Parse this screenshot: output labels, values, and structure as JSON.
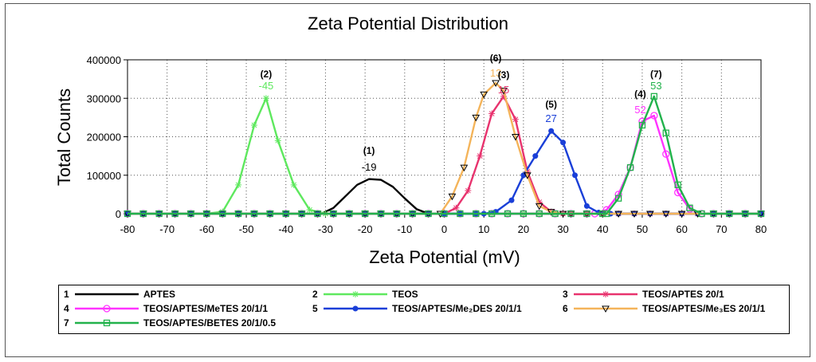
{
  "chart_data": {
    "type": "line",
    "title": "Zeta Potential Distribution",
    "xlabel": "Zeta Potential (mV)",
    "ylabel": "Total Counts",
    "xlim": [
      -80,
      80
    ],
    "ylim": [
      0,
      400000
    ],
    "x_ticks": [
      -80,
      -70,
      -60,
      -50,
      -40,
      -30,
      -20,
      -10,
      0,
      10,
      20,
      30,
      40,
      50,
      60,
      70,
      80
    ],
    "y_ticks": [
      0,
      100000,
      200000,
      300000,
      400000
    ],
    "x_tick_labels": [
      "-80",
      "-70",
      "-60",
      "-50",
      "-40",
      "-30",
      "-20",
      "-10",
      "0",
      "10",
      "20",
      "30",
      "40",
      "50",
      "60",
      "70",
      "80"
    ],
    "y_tick_labels": [
      "0",
      "100000",
      "200000",
      "300000",
      "400000"
    ],
    "grid": true,
    "legend_position": "bottom",
    "series": [
      {
        "id": "1",
        "name": "APTES",
        "color": "#000000",
        "marker": "none",
        "x": [
          -31,
          -28,
          -25,
          -22,
          -19,
          -16,
          -13,
          -10,
          -7,
          -4
        ],
        "y": [
          0,
          15000,
          45000,
          75000,
          90000,
          88000,
          70000,
          40000,
          12000,
          0
        ]
      },
      {
        "id": "2",
        "name": "TEOS",
        "color": "#5ee85e",
        "marker": "star",
        "x": [
          -60,
          -56,
          -52,
          -48,
          -45,
          -42,
          -38,
          -34,
          -30
        ],
        "y": [
          0,
          5000,
          75000,
          230000,
          300000,
          190000,
          75000,
          10000,
          0
        ]
      },
      {
        "id": "3",
        "name": "TEOS/APTES 20/1",
        "color": "#e8336e",
        "marker": "star",
        "x": [
          0,
          3,
          6,
          9,
          12,
          15,
          18,
          21,
          24,
          27,
          30
        ],
        "y": [
          0,
          15000,
          60000,
          150000,
          260000,
          305000,
          245000,
          110000,
          30000,
          5000,
          0
        ]
      },
      {
        "id": "4",
        "name": "TEOS/APTES/MeTES 20/1/1",
        "color": "#ff33ff",
        "marker": "circle",
        "x": [
          38,
          41,
          44,
          47,
          50,
          53,
          56,
          59,
          62,
          65
        ],
        "y": [
          0,
          10000,
          50000,
          120000,
          240000,
          255000,
          155000,
          55000,
          12000,
          0
        ]
      },
      {
        "id": "5",
        "name": "TEOS/APTES/Me₂DES 20/1/1",
        "color": "#1a3fd8",
        "marker": "dot",
        "x": [
          10,
          13,
          17,
          20,
          23,
          27,
          30,
          33,
          36,
          39,
          42
        ],
        "y": [
          0,
          5000,
          35000,
          100000,
          150000,
          215000,
          185000,
          100000,
          20000,
          3000,
          0
        ]
      },
      {
        "id": "6",
        "name": "TEOS/APTES/Me₃ES 20/1/1",
        "color": "#f4b45a",
        "marker": "triangle-down",
        "x": [
          -1,
          2,
          5,
          8,
          10,
          13,
          15,
          18,
          21,
          24,
          27,
          30
        ],
        "y": [
          0,
          45000,
          120000,
          250000,
          310000,
          340000,
          320000,
          200000,
          100000,
          20000,
          5000,
          0
        ]
      },
      {
        "id": "7",
        "name": "TEOS/APTES/BETES 20/1/0.5",
        "color": "#22b24c",
        "marker": "square",
        "x": [
          41,
          44,
          47,
          50,
          53,
          56,
          59,
          62,
          65
        ],
        "y": [
          0,
          40000,
          120000,
          230000,
          305000,
          210000,
          75000,
          15000,
          0
        ]
      }
    ],
    "annotations": [
      {
        "id": "(2)",
        "value": "-45",
        "x": -45,
        "color": "#5ee85e"
      },
      {
        "id": "(1)",
        "value": "-19",
        "x": -19,
        "color": "#000000"
      },
      {
        "id": "(6)",
        "value": "13",
        "x": 13,
        "color": "#f4b45a"
      },
      {
        "id": "(3)",
        "value": "15",
        "x": 15,
        "color": "#e8336e"
      },
      {
        "id": "(5)",
        "value": "27",
        "x": 27,
        "color": "#1a3fd8"
      },
      {
        "id": "(4)",
        "value": "52",
        "x": 52,
        "color": "#ff33ff"
      },
      {
        "id": "(7)",
        "value": "53",
        "x": 53,
        "color": "#22b24c"
      }
    ]
  }
}
